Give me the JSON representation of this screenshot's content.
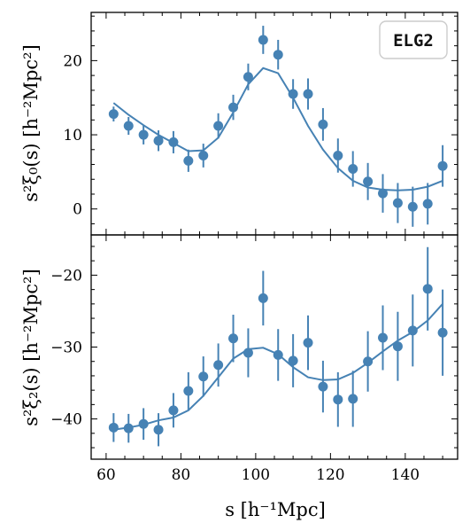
{
  "legend_label": "ELG2",
  "shared_xlabel": "s [h⁻¹Mpc]",
  "colors": {
    "series": "#4682b4",
    "axis": "#000000",
    "legend_border": "#cccccc"
  },
  "chart_data": [
    {
      "type": "scatter",
      "panel": "top",
      "ylabel": "s²ξ₀(s) [h⁻²Mpc²]",
      "xlim": [
        56,
        154
      ],
      "ylim": [
        -3.5,
        26.5
      ],
      "xticks": [
        60,
        80,
        100,
        120,
        140
      ],
      "yticks": [
        0,
        10,
        20
      ],
      "grid": false,
      "legend_position": "top-right",
      "x": [
        62,
        66,
        70,
        74,
        78,
        82,
        86,
        90,
        94,
        98,
        102,
        106,
        110,
        114,
        118,
        122,
        126,
        130,
        134,
        138,
        142,
        146,
        150
      ],
      "data": [
        12.8,
        11.2,
        10.0,
        9.2,
        9.0,
        6.5,
        7.2,
        11.2,
        13.7,
        17.8,
        22.8,
        20.8,
        15.5,
        15.5,
        11.4,
        7.2,
        5.4,
        3.7,
        2.1,
        0.8,
        0.3,
        0.7,
        5.8
      ],
      "errors": [
        1.0,
        1.2,
        1.3,
        1.4,
        1.5,
        1.5,
        1.6,
        1.7,
        1.7,
        1.8,
        1.9,
        2.0,
        2.0,
        2.1,
        2.2,
        2.3,
        2.4,
        2.5,
        2.6,
        2.7,
        2.7,
        2.8,
        2.8
      ],
      "model": [
        14.3,
        12.7,
        11.3,
        10.0,
        8.9,
        7.8,
        7.9,
        9.6,
        13.0,
        16.8,
        19.0,
        18.3,
        15.0,
        11.2,
        8.0,
        5.5,
        3.8,
        2.9,
        2.6,
        2.5,
        2.6,
        3.0,
        3.8
      ]
    },
    {
      "type": "scatter",
      "panel": "bottom",
      "ylabel": "s²ξ₂(s) [h⁻²Mpc²]",
      "xlabel": "s [h⁻¹Mpc]",
      "xlim": [
        56,
        154
      ],
      "ylim": [
        -45.6,
        -14.4
      ],
      "xticks": [
        60,
        80,
        100,
        120,
        140
      ],
      "yticks": [
        -40,
        -30,
        -20
      ],
      "grid": false,
      "x": [
        62,
        66,
        70,
        74,
        78,
        82,
        86,
        90,
        94,
        98,
        102,
        106,
        110,
        114,
        118,
        122,
        126,
        130,
        134,
        138,
        142,
        146,
        150
      ],
      "data": [
        -41.2,
        -41.3,
        -40.7,
        -41.5,
        -38.8,
        -36.1,
        -34.1,
        -32.5,
        -28.8,
        -30.8,
        -23.2,
        -31.1,
        -31.9,
        -29.4,
        -35.5,
        -37.3,
        -37.2,
        -32.0,
        -28.7,
        -29.9,
        -27.7,
        -21.9,
        -28.0
      ],
      "errors": [
        2.0,
        2.0,
        2.2,
        2.3,
        2.4,
        2.6,
        2.8,
        3.0,
        3.3,
        3.4,
        3.8,
        3.6,
        3.7,
        3.8,
        3.6,
        3.8,
        3.9,
        4.2,
        4.5,
        4.8,
        5.0,
        5.8,
        6.0
      ],
      "model": [
        -41.5,
        -41.2,
        -40.8,
        -40.2,
        -39.8,
        -38.8,
        -36.8,
        -34.2,
        -31.6,
        -30.3,
        -30.1,
        -31.0,
        -32.8,
        -34.2,
        -34.6,
        -34.5,
        -33.6,
        -32.2,
        -30.6,
        -29.1,
        -27.9,
        -26.3,
        -24.0
      ]
    }
  ]
}
